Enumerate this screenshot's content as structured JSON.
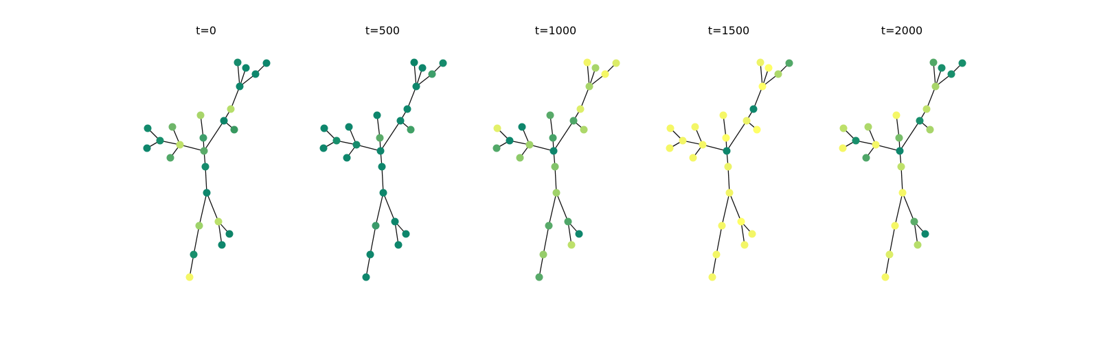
{
  "panels": [
    {
      "title": "t=0",
      "node_colors": [
        "#9ED36A",
        "#188F6C",
        "#F5F766",
        "#A8D56A",
        "#3D9E6A",
        "#5AAB69",
        "#168B6C",
        "#0E866C",
        "#BAE06A",
        "#0D8468",
        "#0E866C",
        "#BFE16A",
        "#188F6C",
        "#128A6C",
        "#0E866C",
        "#6EB569",
        "#52A868",
        "#0D8468",
        "#B6DE6A",
        "#38985F",
        "#0E866C",
        "#168B6C",
        "#0E866C",
        "#0E866C",
        "#0E866C",
        "#0B8468"
      ]
    },
    {
      "title": "t=500",
      "node_colors": [
        "#3A9A6A",
        "#0E866C",
        "#0E866C",
        "#0E866C",
        "#5AAB69",
        "#0E866C",
        "#0E866C",
        "#0E866C",
        "#0E866C",
        "#0E866C",
        "#0E866C",
        "#168B6C",
        "#188F6C",
        "#0E866C",
        "#0E866C",
        "#0E866C",
        "#0E866C",
        "#0E866C",
        "#0E866C",
        "#40A066",
        "#0E866C",
        "#0B8468",
        "#0E866C",
        "#3D9E6A",
        "#168B6C",
        "#FFFF66"
      ]
    },
    {
      "title": "t=1000",
      "node_colors": [
        "#58AA69",
        "#96CD6A",
        "#58AA69",
        "#58AA69",
        "#46A267",
        "#0E866C",
        "#82C36A",
        "#A0D26A",
        "#4FA668",
        "#0E866C",
        "#BDE06A",
        "#A0D26A",
        "#0E866C",
        "#E3F069",
        "#52A868",
        "#0E866C",
        "#8ECA6A",
        "#4FA668",
        "#DDEE69",
        "#ADD86A",
        "#A8D56A",
        "#F2F567",
        "#A8D56A",
        "#F5F766",
        "#DBEC69",
        "#FFFF66"
      ]
    },
    {
      "title": "t=1500",
      "node_colors": [
        "#F5F766",
        "#F3F667",
        "#F5F766",
        "#F5F766",
        "#FFFF66",
        "#0E866C",
        "#ECF368",
        "#F2F567",
        "#FFFF66",
        "#F3F667",
        "#F3F667",
        "#F5F766",
        "#F3F667",
        "#F5F766",
        "#F5F766",
        "#F3F667",
        "#F5F766",
        "#ECF368",
        "#0E866C",
        "#FFFF66",
        "#FFFF66",
        "#EEF467",
        "#FFFF66",
        "#ADD86A",
        "#52A868",
        "#0B8468"
      ]
    },
    {
      "title": "t=2000",
      "node_colors": [
        "#F5F766",
        "#DDEE69",
        "#F5F766",
        "#F5F766",
        "#78BE6A",
        "#0E866C",
        "#BFE16A",
        "#F5F766",
        "#5CAC69",
        "#0E866C",
        "#B6DE6A",
        "#F5F766",
        "#188F6C",
        "#BDE06A",
        "#F5F766",
        "#ADD86A",
        "#4FA668",
        "#188F6C",
        "#BFE16A",
        "#A8D56A",
        "#A8D56A",
        "#52A868",
        "#188F6C",
        "#188F6C",
        "#188F6C",
        "#0B8468"
      ]
    }
  ]
}
